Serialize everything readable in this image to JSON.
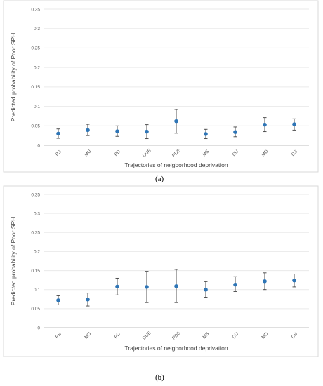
{
  "chart_data": [
    {
      "type": "scatter",
      "panel_label": "(a)",
      "categories": [
        "PS",
        "MU",
        "PD",
        "DUE",
        "PDE",
        "MS",
        "DU",
        "MD",
        "DS"
      ],
      "values": [
        0.03,
        0.039,
        0.036,
        0.035,
        0.062,
        0.029,
        0.034,
        0.053,
        0.054
      ],
      "lower": [
        0.018,
        0.025,
        0.023,
        0.017,
        0.031,
        0.017,
        0.022,
        0.035,
        0.039
      ],
      "upper": [
        0.042,
        0.054,
        0.05,
        0.053,
        0.092,
        0.041,
        0.047,
        0.071,
        0.068
      ],
      "yticks": [
        "0",
        "0.05",
        "0.1",
        "0.15",
        "0.2",
        "0.25",
        "0.3",
        "0.35"
      ],
      "ylim": [
        0,
        0.35
      ],
      "xlabel": "Trajectories of neigborhood deprivation",
      "ylabel": "Predicted probability of Poor SPH",
      "grid": true,
      "point_color": "#2e75b6"
    },
    {
      "type": "scatter",
      "panel_label": "(b)",
      "categories": [
        "PS",
        "MU",
        "PD",
        "DUE",
        "PDE",
        "MS",
        "DU",
        "MD",
        "DS"
      ],
      "values": [
        0.072,
        0.074,
        0.108,
        0.107,
        0.109,
        0.1,
        0.113,
        0.122,
        0.124
      ],
      "lower": [
        0.06,
        0.057,
        0.086,
        0.066,
        0.066,
        0.08,
        0.095,
        0.1,
        0.107
      ],
      "upper": [
        0.084,
        0.091,
        0.13,
        0.148,
        0.153,
        0.121,
        0.134,
        0.144,
        0.141
      ],
      "yticks": [
        "0",
        "0.05",
        "0.1",
        "0.15",
        "0.2",
        "0.25",
        "0.3",
        "0.35"
      ],
      "ylim": [
        0,
        0.35
      ],
      "xlabel": "Trajectories of neigborhood deprivation",
      "ylabel": "Predicted probability of Poor SPH",
      "grid": true,
      "point_color": "#2e75b6"
    }
  ]
}
